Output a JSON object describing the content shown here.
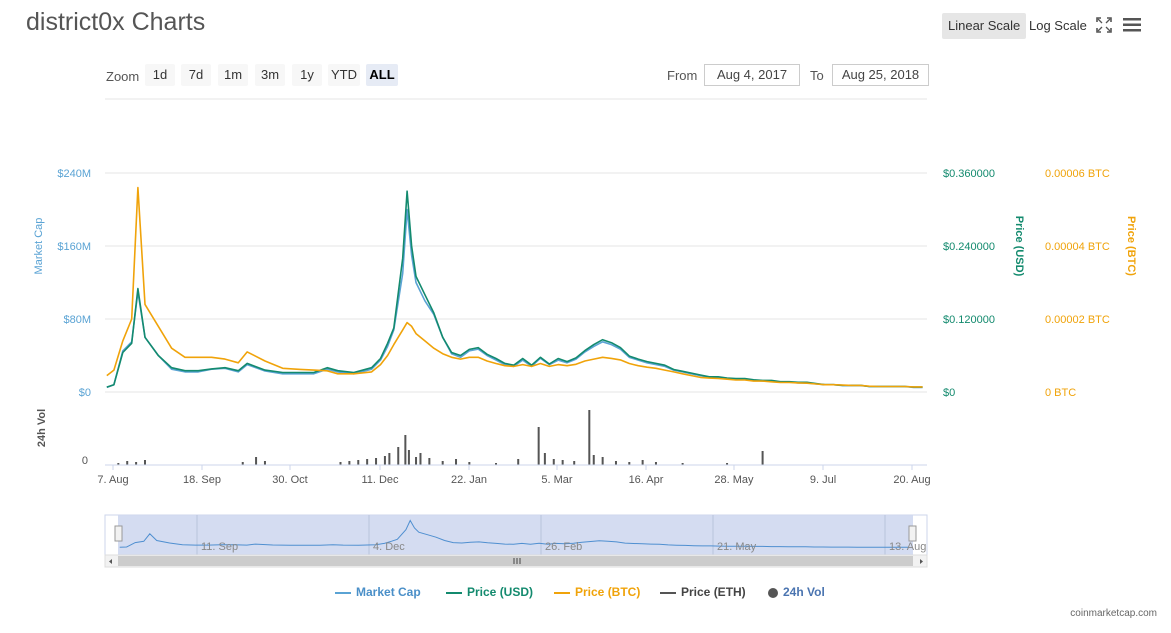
{
  "page": {
    "title": "district0x Charts",
    "credit": "coinmarketcap.com"
  },
  "toolbar": {
    "linear_label": "Linear Scale",
    "log_label": "Log Scale",
    "fullscreen_icon": "fullscreen-icon",
    "menu_icon": "hamburger-menu-icon",
    "active_scale": "linear"
  },
  "zoom": {
    "label": "Zoom",
    "buttons": [
      "1d",
      "7d",
      "1m",
      "3m",
      "1y",
      "YTD",
      "ALL"
    ],
    "active": "ALL"
  },
  "range": {
    "from_label": "From",
    "from_value": "Aug 4, 2017",
    "to_label": "To",
    "to_value": "Aug 25, 2018"
  },
  "legend": [
    {
      "name": "Market Cap",
      "color": "#5aa3d4",
      "symbol": "line"
    },
    {
      "name": "Price (USD)",
      "color": "#138a6e",
      "symbol": "line"
    },
    {
      "name": "Price (BTC)",
      "color": "#f0a30a",
      "symbol": "line"
    },
    {
      "name": "Price (ETH)",
      "color": "#555555",
      "symbol": "line"
    },
    {
      "name": "24h Vol",
      "color": "#555555",
      "symbol": "circle"
    }
  ],
  "chart_data": {
    "type": "line",
    "x_axis": {
      "ticks": [
        "7. Aug",
        "18. Sep",
        "30. Oct",
        "11. Dec",
        "22. Jan",
        "5. Mar",
        "16. Apr",
        "28. May",
        "9. Jul",
        "20. Aug"
      ]
    },
    "axes": {
      "market_cap": {
        "label": "Market Cap",
        "ticks": [
          "$0",
          "$80M",
          "$160M",
          "$240M"
        ],
        "range": [
          0,
          240
        ],
        "color": "#5aa3d4"
      },
      "price_usd": {
        "label": "Price (USD)",
        "ticks": [
          "$0",
          "$0.120000",
          "$0.240000",
          "$0.360000"
        ],
        "range": [
          0,
          0.36
        ],
        "color": "#138a6e"
      },
      "price_btc": {
        "label": "Price (BTC)",
        "ticks": [
          "0 BTC",
          "0.00002 BTC",
          "0.00004 BTC",
          "0.00006 BTC"
        ],
        "range": [
          0,
          6e-05
        ],
        "color": "#f0a30a"
      },
      "volume": {
        "label": "24h Vol",
        "ticks": [
          "0"
        ]
      }
    },
    "grid": true,
    "series": [
      {
        "name": "Market Cap",
        "color": "#5aa3d4",
        "unit": "USD millions",
        "values": [
          [
            2,
            5
          ],
          [
            10,
            8
          ],
          [
            20,
            45
          ],
          [
            30,
            55
          ],
          [
            37,
            110
          ],
          [
            45,
            60
          ],
          [
            60,
            40
          ],
          [
            75,
            25
          ],
          [
            90,
            22
          ],
          [
            105,
            22
          ],
          [
            120,
            25
          ],
          [
            135,
            26
          ],
          [
            150,
            22
          ],
          [
            160,
            30
          ],
          [
            180,
            23
          ],
          [
            200,
            20
          ],
          [
            220,
            20
          ],
          [
            235,
            20
          ],
          [
            250,
            25
          ],
          [
            262,
            22
          ],
          [
            280,
            20
          ],
          [
            300,
            25
          ],
          [
            310,
            35
          ],
          [
            318,
            50
          ],
          [
            325,
            68
          ],
          [
            335,
            130
          ],
          [
            340,
            200
          ],
          [
            345,
            150
          ],
          [
            350,
            120
          ],
          [
            360,
            100
          ],
          [
            370,
            85
          ],
          [
            380,
            60
          ],
          [
            390,
            42
          ],
          [
            400,
            38
          ],
          [
            410,
            45
          ],
          [
            420,
            47
          ],
          [
            430,
            40
          ],
          [
            440,
            35
          ],
          [
            450,
            30
          ],
          [
            460,
            28
          ],
          [
            470,
            35
          ],
          [
            480,
            28
          ],
          [
            490,
            37
          ],
          [
            500,
            30
          ],
          [
            510,
            35
          ],
          [
            520,
            32
          ],
          [
            530,
            36
          ],
          [
            540,
            44
          ],
          [
            550,
            50
          ],
          [
            560,
            55
          ],
          [
            570,
            52
          ],
          [
            580,
            47
          ],
          [
            590,
            38
          ],
          [
            600,
            35
          ],
          [
            610,
            32
          ],
          [
            620,
            30
          ],
          [
            630,
            28
          ],
          [
            640,
            24
          ],
          [
            650,
            22
          ],
          [
            660,
            20
          ],
          [
            670,
            18
          ],
          [
            680,
            16
          ],
          [
            690,
            16
          ],
          [
            700,
            15
          ],
          [
            710,
            14
          ],
          [
            720,
            14
          ],
          [
            730,
            13
          ],
          [
            740,
            12
          ],
          [
            750,
            12
          ],
          [
            760,
            11
          ],
          [
            770,
            11
          ],
          [
            780,
            10
          ],
          [
            790,
            10
          ],
          [
            800,
            9
          ],
          [
            810,
            8
          ],
          [
            820,
            8
          ],
          [
            830,
            7
          ],
          [
            840,
            7
          ],
          [
            850,
            7
          ],
          [
            860,
            6
          ],
          [
            870,
            6
          ],
          [
            880,
            6
          ],
          [
            890,
            6
          ],
          [
            900,
            6
          ],
          [
            910,
            5
          ],
          [
            920,
            5
          ]
        ]
      },
      {
        "name": "Price (USD)",
        "color": "#138a6e",
        "unit": "USD",
        "values": [
          [
            2,
            0.008
          ],
          [
            10,
            0.012
          ],
          [
            20,
            0.065
          ],
          [
            30,
            0.08
          ],
          [
            37,
            0.17
          ],
          [
            45,
            0.09
          ],
          [
            60,
            0.06
          ],
          [
            75,
            0.04
          ],
          [
            90,
            0.035
          ],
          [
            105,
            0.035
          ],
          [
            120,
            0.038
          ],
          [
            135,
            0.04
          ],
          [
            150,
            0.035
          ],
          [
            160,
            0.047
          ],
          [
            180,
            0.036
          ],
          [
            200,
            0.032
          ],
          [
            220,
            0.032
          ],
          [
            235,
            0.032
          ],
          [
            250,
            0.04
          ],
          [
            262,
            0.035
          ],
          [
            280,
            0.032
          ],
          [
            300,
            0.04
          ],
          [
            310,
            0.055
          ],
          [
            318,
            0.08
          ],
          [
            325,
            0.105
          ],
          [
            335,
            0.22
          ],
          [
            340,
            0.33
          ],
          [
            345,
            0.24
          ],
          [
            350,
            0.19
          ],
          [
            360,
            0.16
          ],
          [
            370,
            0.13
          ],
          [
            380,
            0.09
          ],
          [
            390,
            0.065
          ],
          [
            400,
            0.06
          ],
          [
            410,
            0.07
          ],
          [
            420,
            0.073
          ],
          [
            430,
            0.062
          ],
          [
            440,
            0.055
          ],
          [
            450,
            0.047
          ],
          [
            460,
            0.044
          ],
          [
            470,
            0.055
          ],
          [
            480,
            0.044
          ],
          [
            490,
            0.057
          ],
          [
            500,
            0.046
          ],
          [
            510,
            0.055
          ],
          [
            520,
            0.05
          ],
          [
            530,
            0.056
          ],
          [
            540,
            0.068
          ],
          [
            550,
            0.078
          ],
          [
            560,
            0.086
          ],
          [
            570,
            0.081
          ],
          [
            580,
            0.073
          ],
          [
            590,
            0.059
          ],
          [
            600,
            0.054
          ],
          [
            610,
            0.05
          ],
          [
            620,
            0.047
          ],
          [
            630,
            0.044
          ],
          [
            640,
            0.037
          ],
          [
            650,
            0.034
          ],
          [
            660,
            0.031
          ],
          [
            670,
            0.028
          ],
          [
            680,
            0.025
          ],
          [
            690,
            0.025
          ],
          [
            700,
            0.023
          ],
          [
            710,
            0.022
          ],
          [
            720,
            0.022
          ],
          [
            730,
            0.02
          ],
          [
            740,
            0.019
          ],
          [
            750,
            0.019
          ],
          [
            760,
            0.017
          ],
          [
            770,
            0.017
          ],
          [
            780,
            0.016
          ],
          [
            790,
            0.016
          ],
          [
            800,
            0.014
          ],
          [
            810,
            0.012
          ],
          [
            820,
            0.012
          ],
          [
            830,
            0.011
          ],
          [
            840,
            0.011
          ],
          [
            850,
            0.011
          ],
          [
            860,
            0.009
          ],
          [
            870,
            0.009
          ],
          [
            880,
            0.009
          ],
          [
            890,
            0.009
          ],
          [
            900,
            0.009
          ],
          [
            910,
            0.008
          ],
          [
            920,
            0.008
          ]
        ]
      },
      {
        "name": "Price (BTC)",
        "color": "#f0a30a",
        "unit": "BTC",
        "values": [
          [
            2,
            4.5e-06
          ],
          [
            10,
            6e-06
          ],
          [
            20,
            1.4e-05
          ],
          [
            30,
            2e-05
          ],
          [
            37,
            5.6e-05
          ],
          [
            45,
            2.4e-05
          ],
          [
            60,
            1.8e-05
          ],
          [
            75,
            1.2e-05
          ],
          [
            90,
            9.5e-06
          ],
          [
            105,
            9.5e-06
          ],
          [
            120,
            9.5e-06
          ],
          [
            135,
            9e-06
          ],
          [
            150,
            8e-06
          ],
          [
            160,
            1.1e-05
          ],
          [
            180,
            8.5e-06
          ],
          [
            200,
            6.5e-06
          ],
          [
            220,
            6.2e-06
          ],
          [
            235,
            6e-06
          ],
          [
            250,
            5.8e-06
          ],
          [
            262,
            5e-06
          ],
          [
            280,
            5e-06
          ],
          [
            300,
            5.5e-06
          ],
          [
            310,
            7.5e-06
          ],
          [
            318,
            1e-05
          ],
          [
            325,
            1.3e-05
          ],
          [
            335,
            1.7e-05
          ],
          [
            340,
            1.9e-05
          ],
          [
            345,
            1.8e-05
          ],
          [
            350,
            1.6e-05
          ],
          [
            360,
            1.4e-05
          ],
          [
            370,
            1.2e-05
          ],
          [
            380,
            1.05e-05
          ],
          [
            390,
            9.5e-06
          ],
          [
            400,
            9e-06
          ],
          [
            410,
            9.5e-06
          ],
          [
            420,
            9.5e-06
          ],
          [
            430,
            8.5e-06
          ],
          [
            440,
            7.8e-06
          ],
          [
            450,
            7.2e-06
          ],
          [
            460,
            7e-06
          ],
          [
            470,
            7.5e-06
          ],
          [
            480,
            7e-06
          ],
          [
            490,
            7.8e-06
          ],
          [
            500,
            7e-06
          ],
          [
            510,
            7.5e-06
          ],
          [
            520,
            7.2e-06
          ],
          [
            530,
            7.6e-06
          ],
          [
            540,
            8.5e-06
          ],
          [
            550,
            9e-06
          ],
          [
            560,
            9.5e-06
          ],
          [
            570,
            9.2e-06
          ],
          [
            580,
            8.8e-06
          ],
          [
            590,
            7.8e-06
          ],
          [
            600,
            7.2e-06
          ],
          [
            610,
            6.8e-06
          ],
          [
            620,
            6.5e-06
          ],
          [
            630,
            6e-06
          ],
          [
            640,
            5.5e-06
          ],
          [
            650,
            5e-06
          ],
          [
            660,
            4.5e-06
          ],
          [
            670,
            4e-06
          ],
          [
            680,
            3.8e-06
          ],
          [
            690,
            3.7e-06
          ],
          [
            700,
            3.5e-06
          ],
          [
            710,
            3.3e-06
          ],
          [
            720,
            3.3e-06
          ],
          [
            730,
            3e-06
          ],
          [
            740,
            3e-06
          ],
          [
            750,
            2.8e-06
          ],
          [
            760,
            2.6e-06
          ],
          [
            770,
            2.6e-06
          ],
          [
            780,
            2.5e-06
          ],
          [
            790,
            2.4e-06
          ],
          [
            800,
            2.2e-06
          ],
          [
            810,
            2e-06
          ],
          [
            820,
            2e-06
          ],
          [
            830,
            1.9e-06
          ],
          [
            840,
            1.8e-06
          ],
          [
            850,
            1.8e-06
          ],
          [
            860,
            1.6e-06
          ],
          [
            870,
            1.5e-06
          ],
          [
            880,
            1.5e-06
          ],
          [
            890,
            1.5e-06
          ],
          [
            900,
            1.5e-06
          ],
          [
            910,
            1.4e-06
          ],
          [
            920,
            1.4e-06
          ]
        ]
      }
    ],
    "volume_bars": [
      [
        15,
        2
      ],
      [
        25,
        4
      ],
      [
        35,
        3
      ],
      [
        45,
        5
      ],
      [
        155,
        3
      ],
      [
        170,
        8
      ],
      [
        180,
        4
      ],
      [
        265,
        3
      ],
      [
        275,
        4
      ],
      [
        285,
        5
      ],
      [
        295,
        6
      ],
      [
        305,
        7
      ],
      [
        315,
        9
      ],
      [
        320,
        12
      ],
      [
        330,
        18
      ],
      [
        338,
        30
      ],
      [
        342,
        15
      ],
      [
        350,
        8
      ],
      [
        355,
        12
      ],
      [
        365,
        7
      ],
      [
        380,
        4
      ],
      [
        395,
        6
      ],
      [
        410,
        3
      ],
      [
        440,
        2
      ],
      [
        465,
        6
      ],
      [
        488,
        38
      ],
      [
        495,
        12
      ],
      [
        505,
        6
      ],
      [
        515,
        5
      ],
      [
        528,
        4
      ],
      [
        545,
        55
      ],
      [
        550,
        10
      ],
      [
        560,
        8
      ],
      [
        575,
        4
      ],
      [
        590,
        3
      ],
      [
        605,
        5
      ],
      [
        620,
        3
      ],
      [
        650,
        2
      ],
      [
        700,
        2
      ],
      [
        740,
        14
      ]
    ],
    "navigator": {
      "ticks": [
        "11. Sep",
        "4. Dec",
        "26. Feb",
        "21. May",
        "13. Aug"
      ]
    }
  }
}
